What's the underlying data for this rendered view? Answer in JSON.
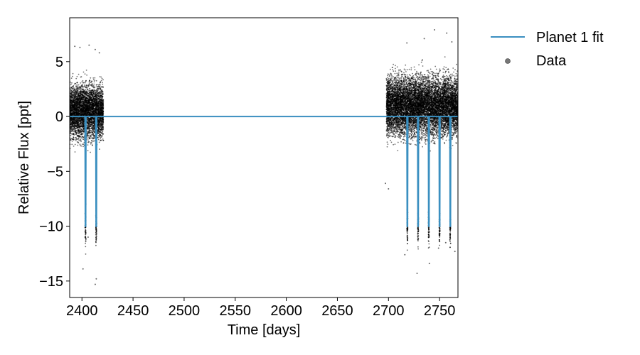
{
  "chart_data": {
    "type": "scatter",
    "xlabel": "Time [days]",
    "ylabel": "Relative Flux [ppt]",
    "xlim": [
      2388,
      2768
    ],
    "ylim": [
      -16.5,
      9
    ],
    "xticks": [
      2400,
      2450,
      2500,
      2550,
      2600,
      2650,
      2700,
      2750
    ],
    "yticks": [
      -15,
      -10,
      -5,
      0,
      5
    ],
    "ytick_labels": [
      "−15",
      "−10",
      "−5",
      "0",
      "5"
    ],
    "grid": false,
    "legend_position": "outside right, top",
    "series": [
      {
        "name": "Planet 1 fit",
        "kind": "line",
        "color": "#3a8fc0",
        "baseline": 0,
        "transit_depth": -10,
        "transit_times": [
          2403.5,
          2414.0,
          2718.5,
          2729.0,
          2739.5,
          2750.0,
          2760.5
        ]
      },
      {
        "name": "Data",
        "kind": "scatter",
        "color": "#000000",
        "segments": [
          {
            "x_range": [
              2388,
              2421
            ],
            "y_range": [
              -4.5,
              5.5
            ]
          },
          {
            "x_range": [
              2698,
              2768
            ],
            "y_range": [
              -4.5,
              6.5
            ]
          }
        ],
        "outliers": [
          [
            2393,
            6.4
          ],
          [
            2398,
            6.3
          ],
          [
            2407,
            6.5
          ],
          [
            2413,
            6.1
          ],
          [
            2417,
            5.8
          ],
          [
            2401,
            -13.9
          ],
          [
            2413,
            -15.3
          ],
          [
            2414,
            -14.8
          ],
          [
            2406,
            -11.0
          ],
          [
            2700,
            -6.6
          ],
          [
            2697,
            -6.1
          ],
          [
            2716,
            -12.6
          ],
          [
            2728,
            -14.3
          ],
          [
            2740,
            -13.4
          ],
          [
            2749,
            -12.0
          ],
          [
            2756,
            -11.5
          ],
          [
            2765,
            -12.3
          ],
          [
            2745,
            7.9
          ],
          [
            2757,
            7.6
          ],
          [
            2735,
            7.1
          ],
          [
            2718,
            6.7
          ],
          [
            2762,
            6.8
          ]
        ]
      }
    ]
  }
}
